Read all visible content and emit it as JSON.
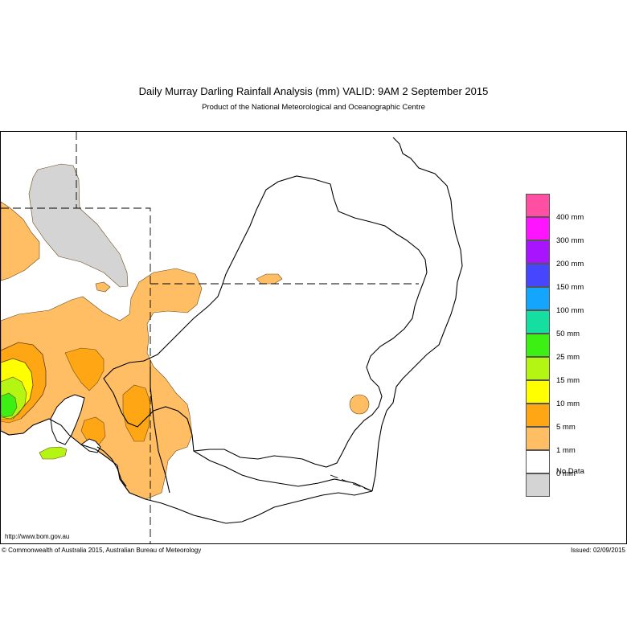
{
  "header": {
    "title": "Daily Murray Darling Rainfall Analysis (mm)  VALID: 9AM  2 September 2015",
    "subtitle": "Product of the National Meteorological and Oceanographic Centre"
  },
  "map": {
    "region": "Murray Darling Basin",
    "url": "http://www.bom.gov.au",
    "copyright": "© Commonwealth of Australia 2015, Australian Bureau of Meteorology",
    "issued": "Issued: 02/09/2015"
  },
  "legend": {
    "items": [
      {
        "label": "400 mm",
        "color": "#ff4fa3"
      },
      {
        "label": "300 mm",
        "color": "#ff14ff"
      },
      {
        "label": "200 mm",
        "color": "#a914ff"
      },
      {
        "label": "150 mm",
        "color": "#4646ff"
      },
      {
        "label": "100 mm",
        "color": "#14a5ff"
      },
      {
        "label": "50 mm",
        "color": "#14dea0"
      },
      {
        "label": "25 mm",
        "color": "#3cf014"
      },
      {
        "label": "15 mm",
        "color": "#b4f514"
      },
      {
        "label": "10 mm",
        "color": "#ffff00"
      },
      {
        "label": "5 mm",
        "color": "#ffa614"
      },
      {
        "label": "1 mm",
        "color": "#ffbe64"
      },
      {
        "label": "0 mm",
        "color": "#ffffff"
      }
    ],
    "no_data": {
      "label": "No Data",
      "color": "#d4d4d4"
    }
  },
  "colors": {
    "r1": "#ffbe64",
    "r5": "#ffa614",
    "r10": "#ffff00",
    "r15": "#b4f514",
    "r25": "#3cf014",
    "nodata": "#d4d4d4"
  }
}
